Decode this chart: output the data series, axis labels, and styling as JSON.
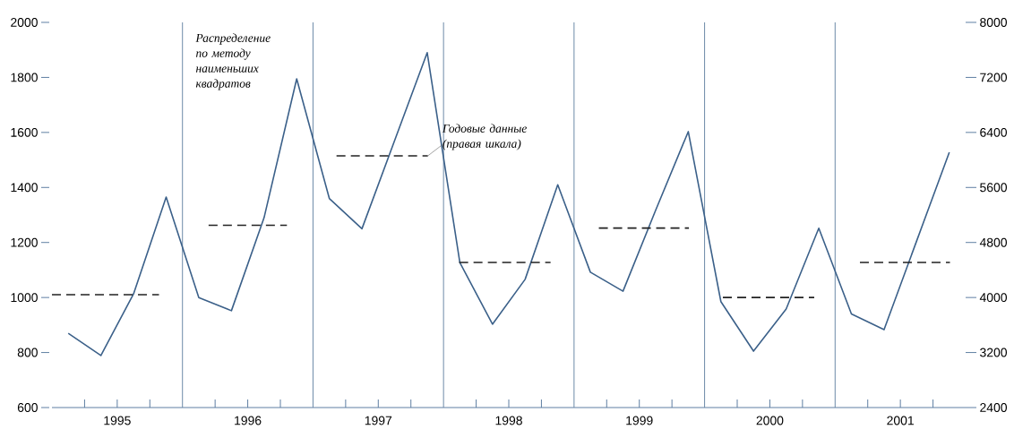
{
  "chart_data": {
    "type": "line",
    "xlim": [
      1995,
      2002
    ],
    "xticks": [
      {
        "value": 1995.25,
        "label": null
      },
      {
        "value": 1995.5,
        "label": "1995"
      },
      {
        "value": 1995.75,
        "label": null
      },
      {
        "value": 1996.25,
        "label": null
      },
      {
        "value": 1996.5,
        "label": "1996"
      },
      {
        "value": 1996.75,
        "label": null
      },
      {
        "value": 1997.25,
        "label": null
      },
      {
        "value": 1997.5,
        "label": "1997"
      },
      {
        "value": 1997.75,
        "label": null
      },
      {
        "value": 1998.25,
        "label": null
      },
      {
        "value": 1998.5,
        "label": "1998"
      },
      {
        "value": 1998.75,
        "label": null
      },
      {
        "value": 1999.25,
        "label": null
      },
      {
        "value": 1999.5,
        "label": "1999"
      },
      {
        "value": 1999.75,
        "label": null
      },
      {
        "value": 2000.25,
        "label": null
      },
      {
        "value": 2000.5,
        "label": "2000"
      },
      {
        "value": 2000.75,
        "label": null
      },
      {
        "value": 2001.25,
        "label": null
      },
      {
        "value": 2001.5,
        "label": "2001"
      },
      {
        "value": 2001.75,
        "label": null
      }
    ],
    "ylim": [
      600,
      2000
    ],
    "yticks": [
      600,
      800,
      1000,
      1200,
      1400,
      1600,
      1800,
      2000
    ],
    "y2lim": [
      2400,
      8000
    ],
    "y2ticks": [
      2400,
      3200,
      4000,
      4800,
      5600,
      6400,
      7200,
      8000
    ],
    "ref_lines": [
      {
        "axis": "x",
        "value": 1996,
        "color": "#6d8aa8"
      },
      {
        "axis": "x",
        "value": 1997,
        "color": "#6d8aa8"
      },
      {
        "axis": "x",
        "value": 1998,
        "color": "#6d8aa8"
      },
      {
        "axis": "x",
        "value": 1999,
        "color": "#6d8aa8"
      },
      {
        "axis": "x",
        "value": 2000,
        "color": "#6d8aa8"
      },
      {
        "axis": "x",
        "value": 2001,
        "color": "#6d8aa8"
      }
    ],
    "series": [
      {
        "name": "Распределение по методу наименьших квадратов",
        "color": "#3b6089",
        "x": [
          1995.125,
          1995.375,
          1995.625,
          1995.875,
          1996.125,
          1996.375,
          1996.625,
          1996.875,
          1997.125,
          1997.375,
          1997.625,
          1997.875,
          1998.125,
          1998.375,
          1998.625,
          1998.875,
          1999.125,
          1999.375,
          1999.625,
          1999.875,
          2000.125,
          2000.375,
          2000.625,
          2000.875,
          2001.125,
          2001.375,
          2001.625,
          2001.875
        ],
        "values": [
          870,
          789,
          1013,
          1365,
          1000,
          952,
          1290,
          1795,
          1360,
          1250,
          1570,
          1890,
          1127,
          903,
          1066,
          1410,
          1092,
          1023,
          1317,
          1603,
          985,
          805,
          958,
          1252,
          940,
          883,
          1206,
          1528
        ]
      },
      {
        "name": "Годовые данные (правая шкала)",
        "axis": "y2",
        "line_style": "dashed",
        "color": "#222222",
        "x": [
          1995.0,
          1995.82,
          1995.9,
          1996.2,
          1996.8,
          1996.9,
          1997.18,
          1997.88,
          1997.9,
          1998.12,
          1998.82,
          1998.9,
          1999.19,
          1999.88,
          1999.9,
          2000.14,
          2000.84,
          2000.9,
          2001.19,
          2001.88
        ],
        "values": [
          4040,
          4040,
          null,
          5050,
          5050,
          null,
          6060,
          6060,
          null,
          4510,
          4510,
          null,
          5010,
          5010,
          null,
          4000,
          4000,
          null,
          4510,
          4510
        ]
      }
    ]
  }
}
